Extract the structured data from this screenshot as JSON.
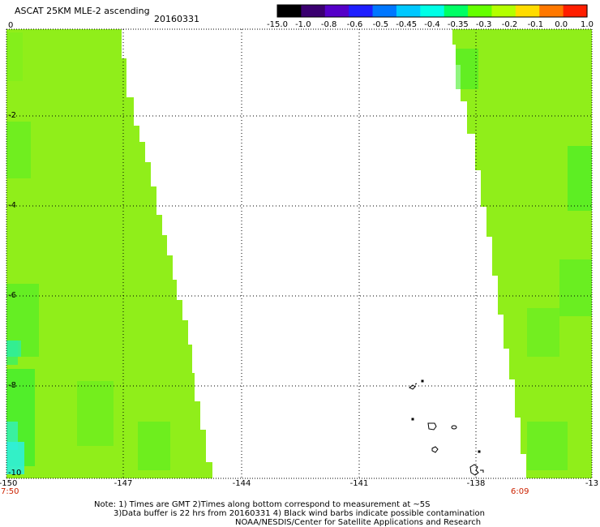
{
  "title": "ASCAT 25KM MLE-2 ascending",
  "date": "20160331",
  "colorbar": {
    "labels": [
      "-15.0",
      "-1.0",
      "-0.8",
      "-0.6",
      "-0.5",
      "-0.45",
      "-0.4",
      "-0.35",
      "-0.3",
      "-0.2",
      "-0.1",
      "0.0",
      "1.0"
    ],
    "colors": [
      "#000000",
      "#3a0070",
      "#5500c8",
      "#1e1eff",
      "#0077ff",
      "#00c8ff",
      "#00ffe6",
      "#00ff64",
      "#64ff00",
      "#b4ff00",
      "#ffdc00",
      "#ff7800",
      "#ff1e00"
    ]
  },
  "axes": {
    "y_labels": [
      "0",
      "-2",
      "-4",
      "-6",
      "-8",
      "-10"
    ],
    "x_labels": [
      "-150",
      "-147",
      "-144",
      "-141",
      "-138",
      "-13"
    ],
    "start_time": "7:50",
    "end_time": "6:09"
  },
  "swath": {
    "fill_color": "#90ee1a",
    "accent_green": "#39ee28",
    "cyan_edge": "#33f0d0"
  },
  "notes": {
    "line1": "Note: 1) Times are GMT 2)Times along bottom correspond to measurement at ~5S",
    "line2": "3)Data buffer is 22 hrs from 20160331 4) Black wind barbs indicate possible contamination",
    "line3": "NOAA/NESDIS/Center for Satellite Applications and Research"
  }
}
